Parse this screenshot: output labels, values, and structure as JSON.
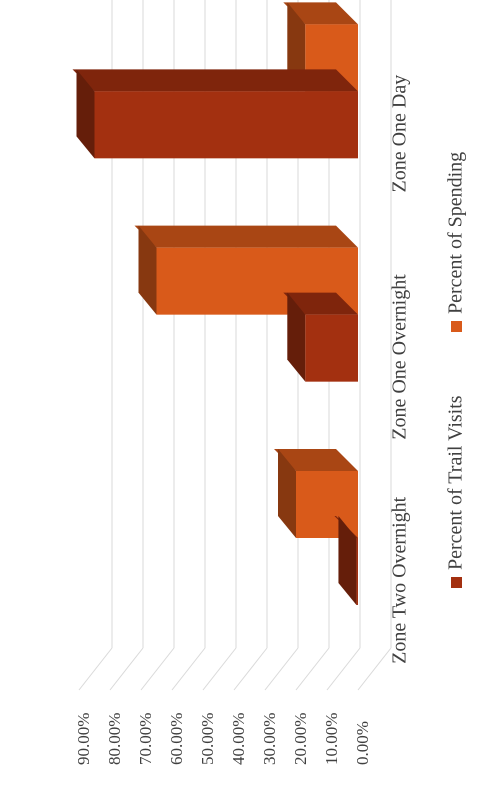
{
  "chart_data": {
    "type": "bar",
    "orientation": "rotated-90-clockwise",
    "style": "3d-clustered-column",
    "categories": [
      "Zone One Day",
      "Zone One Overnight",
      "Zone Two Overnight"
    ],
    "series": [
      {
        "name": "Percent of Trail Visits",
        "values": [
          85.0,
          17.0,
          0.5
        ],
        "color": "#a33010"
      },
      {
        "name": "Percent of Spending",
        "values": [
          17.0,
          65.0,
          20.0
        ],
        "color": "#d95a1a"
      }
    ],
    "y_ticks": [
      "0.00%",
      "10.00%",
      "20.00%",
      "30.00%",
      "40.00%",
      "50.00%",
      "60.00%",
      "70.00%",
      "80.00%",
      "90.00%"
    ],
    "ylim": [
      0,
      90
    ],
    "grid": true,
    "legend_position": "bottom"
  }
}
